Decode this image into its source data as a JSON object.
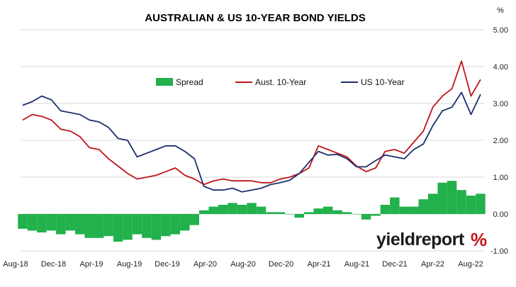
{
  "chart_data": {
    "type": "line",
    "title": "AUSTRALIAN & US 10-YEAR BOND YIELDS",
    "ylabel": "%",
    "ylim": [
      -1.0,
      5.0
    ],
    "y_ticks": [
      "5.00",
      "4.00",
      "3.00",
      "2.00",
      "1.00",
      "0.00",
      "-1.00"
    ],
    "y_axis_side": "right",
    "x_ticks": [
      "Aug-18",
      "Dec-18",
      "Apr-19",
      "Aug-19",
      "Dec-19",
      "Apr-20",
      "Aug-20",
      "Dec-20",
      "Apr-21",
      "Aug-21",
      "Dec-21",
      "Apr-22",
      "Aug-22"
    ],
    "grid": "horizontal",
    "legend_position": "upper-center",
    "x": [
      "Aug-18",
      "Sep-18",
      "Oct-18",
      "Nov-18",
      "Dec-18",
      "Jan-19",
      "Feb-19",
      "Mar-19",
      "Apr-19",
      "May-19",
      "Jun-19",
      "Jul-19",
      "Aug-19",
      "Sep-19",
      "Oct-19",
      "Nov-19",
      "Dec-19",
      "Jan-20",
      "Feb-20",
      "Mar-20",
      "Apr-20",
      "May-20",
      "Jun-20",
      "Jul-20",
      "Aug-20",
      "Sep-20",
      "Oct-20",
      "Nov-20",
      "Dec-20",
      "Jan-21",
      "Feb-21",
      "Mar-21",
      "Apr-21",
      "May-21",
      "Jun-21",
      "Jul-21",
      "Aug-21",
      "Sep-21",
      "Oct-21",
      "Nov-21",
      "Dec-21",
      "Jan-22",
      "Feb-22",
      "Mar-22",
      "Apr-22",
      "May-22",
      "Jun-22",
      "Jul-22",
      "Aug-22"
    ],
    "series": [
      {
        "name": "Spread",
        "kind": "bar",
        "color": "#22b14c",
        "values": [
          -0.4,
          -0.45,
          -0.5,
          -0.45,
          -0.55,
          -0.45,
          -0.55,
          -0.65,
          -0.65,
          -0.6,
          -0.75,
          -0.7,
          -0.55,
          -0.65,
          -0.7,
          -0.6,
          -0.55,
          -0.45,
          -0.3,
          0.1,
          0.2,
          0.25,
          0.3,
          0.25,
          0.3,
          0.2,
          0.05,
          0.05,
          0.0,
          -0.1,
          0.05,
          0.15,
          0.2,
          0.1,
          0.05,
          0.0,
          -0.15,
          -0.05,
          0.25,
          0.45,
          0.2,
          0.2,
          0.4,
          0.55,
          0.85,
          0.9,
          0.65,
          0.5,
          0.55
        ]
      },
      {
        "name": "Aust. 10-Year",
        "kind": "line",
        "color": "#c0141c",
        "values": [
          2.55,
          2.7,
          2.65,
          2.55,
          2.3,
          2.25,
          2.1,
          1.8,
          1.75,
          1.5,
          1.3,
          1.1,
          0.95,
          1.0,
          1.05,
          1.15,
          1.25,
          1.05,
          0.95,
          0.8,
          0.9,
          0.95,
          0.9,
          0.9,
          0.9,
          0.85,
          0.85,
          0.95,
          1.0,
          1.1,
          1.25,
          1.85,
          1.75,
          1.65,
          1.55,
          1.3,
          1.15,
          1.25,
          1.7,
          1.75,
          1.65,
          1.95,
          2.25,
          2.9,
          3.2,
          3.4,
          4.15,
          3.2,
          3.65
        ]
      },
      {
        "name": "US 10-Year",
        "kind": "line",
        "color": "#1b2f6e",
        "values": [
          2.95,
          3.05,
          3.2,
          3.1,
          2.8,
          2.75,
          2.7,
          2.55,
          2.5,
          2.35,
          2.05,
          2.0,
          1.55,
          1.65,
          1.75,
          1.85,
          1.85,
          1.7,
          1.5,
          0.75,
          0.65,
          0.65,
          0.7,
          0.6,
          0.65,
          0.7,
          0.8,
          0.85,
          0.92,
          1.1,
          1.4,
          1.7,
          1.6,
          1.62,
          1.5,
          1.28,
          1.28,
          1.45,
          1.6,
          1.55,
          1.5,
          1.75,
          1.9,
          2.4,
          2.8,
          2.9,
          3.3,
          2.7,
          3.25
        ]
      }
    ]
  },
  "brand": {
    "name": "yieldreport",
    "symbol": "%"
  }
}
